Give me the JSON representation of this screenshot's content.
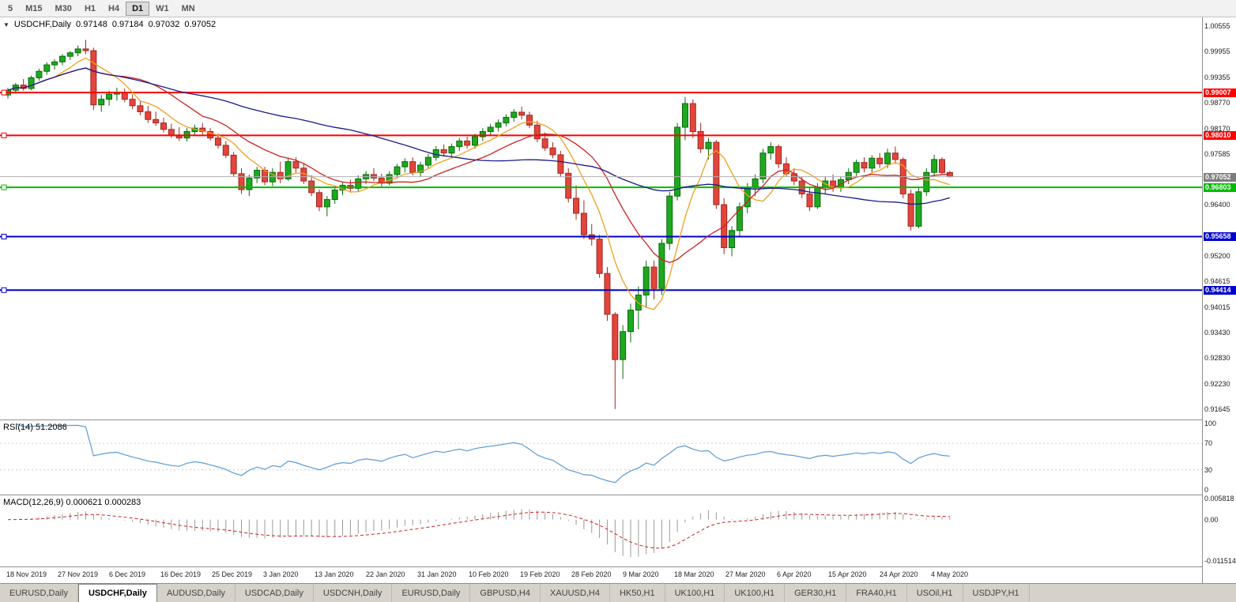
{
  "toolbar": {
    "timeframes": [
      "5",
      "M15",
      "M30",
      "H1",
      "H4",
      "D1",
      "W1",
      "MN"
    ],
    "active": "D1"
  },
  "chart_header": {
    "symbol_label": "USDCHF,Daily",
    "open": "0.97148",
    "high": "0.97184",
    "low": "0.97032",
    "close": "0.97052"
  },
  "colors": {
    "bull": "#1fa81f",
    "bull_border": "#0a6a0a",
    "bear": "#e2453c",
    "bear_border": "#a02820",
    "rsi": "#5b9bd5",
    "macd_hist": "#9a9a9a",
    "macd_signal": "#cc2222",
    "current_price_line": "#b0b0b0",
    "current_price_box": "#7d7d7d",
    "level_red": "#ff0000",
    "level_green": "#00bb00",
    "level_blue": "#0000cc"
  },
  "chart_data": {
    "type": "candlestick",
    "symbol": "USDCHF",
    "timeframe": "Daily",
    "ylim": [
      0.9148,
      1.0068
    ],
    "price_axis_ticks": [
      "1.00555",
      "0.99955",
      "0.99355",
      "0.98770",
      "0.98170",
      "0.97585",
      "0.96400",
      "0.95200",
      "0.94615",
      "0.94015",
      "0.93430",
      "0.92830",
      "0.92230",
      "0.91645"
    ],
    "x_labels": [
      "18 Nov 2019",
      "27 Nov 2019",
      "6 Dec 2019",
      "16 Dec 2019",
      "25 Dec 2019",
      "3 Jan 2020",
      "13 Jan 2020",
      "22 Jan 2020",
      "31 Jan 2020",
      "10 Feb 2020",
      "19 Feb 2020",
      "28 Feb 2020",
      "9 Mar 2020",
      "18 Mar 2020",
      "27 Mar 2020",
      "6 Apr 2020",
      "15 Apr 2020",
      "24 Apr 2020",
      "4 May 2020"
    ],
    "current_price": {
      "value": 0.97052,
      "label": "0.97052"
    },
    "hlines": [
      {
        "value": 0.99007,
        "label": "0.99007",
        "color": "#ff0000"
      },
      {
        "value": 0.9801,
        "label": "0.98010",
        "color": "#ff0000"
      },
      {
        "value": 0.96803,
        "label": "0.96803",
        "color": "#00bb00"
      },
      {
        "value": 0.95658,
        "label": "0.95658",
        "color": "#0000cc"
      },
      {
        "value": 0.94414,
        "label": "0.94414",
        "color": "#0000cc"
      }
    ],
    "moving_averages": [
      {
        "period": 7,
        "color": "#efa020"
      },
      {
        "period": 15,
        "color": "#cc2222"
      },
      {
        "period": 45,
        "color": "#1a1a8c"
      }
    ],
    "indicators": {
      "rsi": {
        "label": "RSI(14) 51.2086",
        "period": 14,
        "ticks": [
          "100",
          "70",
          "30",
          "0"
        ],
        "levels": [
          70,
          30
        ]
      },
      "macd": {
        "label": "MACD(12,26,9) 0.000621 0.000283",
        "fast": 12,
        "slow": 26,
        "signal": 9,
        "ticks": [
          "0.005818",
          "0.00",
          "-0.011514"
        ],
        "range": [
          -0.0118,
          0.0059
        ]
      }
    },
    "candles": [
      [
        0.9895,
        0.9912,
        0.9887,
        0.9906
      ],
      [
        0.9906,
        0.9923,
        0.9898,
        0.9918
      ],
      [
        0.9918,
        0.9932,
        0.9905,
        0.991
      ],
      [
        0.991,
        0.994,
        0.9906,
        0.9935
      ],
      [
        0.9935,
        0.9956,
        0.9928,
        0.995
      ],
      [
        0.995,
        0.9971,
        0.9942,
        0.9965
      ],
      [
        0.9965,
        0.9978,
        0.9954,
        0.9972
      ],
      [
        0.9972,
        0.999,
        0.9964,
        0.9985
      ],
      [
        0.9985,
        0.9997,
        0.9976,
        0.9993
      ],
      [
        0.9993,
        1.001,
        0.9985,
        1.0002
      ],
      [
        1.0002,
        1.0023,
        0.999,
        0.9998
      ],
      [
        0.9998,
        1.0005,
        0.986,
        0.9872
      ],
      [
        0.9872,
        0.9895,
        0.9856,
        0.9885
      ],
      [
        0.9885,
        0.9905,
        0.987,
        0.9897
      ],
      [
        0.9897,
        0.9912,
        0.9882,
        0.9901
      ],
      [
        0.9901,
        0.991,
        0.9878,
        0.9885
      ],
      [
        0.9885,
        0.9896,
        0.9862,
        0.987
      ],
      [
        0.987,
        0.9882,
        0.9848,
        0.9856
      ],
      [
        0.9856,
        0.987,
        0.983,
        0.9838
      ],
      [
        0.9838,
        0.9856,
        0.9823,
        0.983
      ],
      [
        0.983,
        0.9842,
        0.9808,
        0.9815
      ],
      [
        0.9815,
        0.9828,
        0.9795,
        0.9802
      ],
      [
        0.9802,
        0.982,
        0.9788,
        0.9795
      ],
      [
        0.9795,
        0.9818,
        0.9787,
        0.981
      ],
      [
        0.981,
        0.9826,
        0.9799,
        0.9818
      ],
      [
        0.9818,
        0.983,
        0.9802,
        0.981
      ],
      [
        0.981,
        0.9818,
        0.9789,
        0.9795
      ],
      [
        0.9795,
        0.9805,
        0.977,
        0.9778
      ],
      [
        0.9778,
        0.9788,
        0.9748,
        0.9755
      ],
      [
        0.9755,
        0.9762,
        0.9705,
        0.9712
      ],
      [
        0.9712,
        0.9725,
        0.9665,
        0.9675
      ],
      [
        0.9675,
        0.971,
        0.966,
        0.9702
      ],
      [
        0.9702,
        0.9728,
        0.969,
        0.972
      ],
      [
        0.972,
        0.9728,
        0.9685,
        0.9693
      ],
      [
        0.9693,
        0.9725,
        0.9683,
        0.9715
      ],
      [
        0.9715,
        0.974,
        0.969,
        0.97
      ],
      [
        0.97,
        0.9748,
        0.9695,
        0.974
      ],
      [
        0.974,
        0.975,
        0.9715,
        0.9725
      ],
      [
        0.9725,
        0.9736,
        0.9688,
        0.9695
      ],
      [
        0.9695,
        0.9708,
        0.966,
        0.9668
      ],
      [
        0.9668,
        0.9675,
        0.9625,
        0.9635
      ],
      [
        0.9635,
        0.966,
        0.9613,
        0.9652
      ],
      [
        0.9652,
        0.968,
        0.9642,
        0.9674
      ],
      [
        0.9674,
        0.9692,
        0.9662,
        0.9685
      ],
      [
        0.9685,
        0.9698,
        0.9668,
        0.9678
      ],
      [
        0.9678,
        0.9708,
        0.967,
        0.97
      ],
      [
        0.97,
        0.9718,
        0.9688,
        0.971
      ],
      [
        0.971,
        0.9725,
        0.9695,
        0.9702
      ],
      [
        0.9702,
        0.9712,
        0.9682,
        0.969
      ],
      [
        0.969,
        0.9718,
        0.9685,
        0.971
      ],
      [
        0.971,
        0.9735,
        0.9702,
        0.9728
      ],
      [
        0.9728,
        0.9748,
        0.9715,
        0.974
      ],
      [
        0.974,
        0.975,
        0.9708,
        0.9715
      ],
      [
        0.9715,
        0.974,
        0.9705,
        0.9732
      ],
      [
        0.9732,
        0.9758,
        0.9725,
        0.975
      ],
      [
        0.975,
        0.9776,
        0.9742,
        0.9768
      ],
      [
        0.9768,
        0.978,
        0.9752,
        0.976
      ],
      [
        0.976,
        0.9782,
        0.975,
        0.9775
      ],
      [
        0.9775,
        0.9795,
        0.9765,
        0.9788
      ],
      [
        0.9788,
        0.9798,
        0.977,
        0.9778
      ],
      [
        0.9778,
        0.9805,
        0.977,
        0.9798
      ],
      [
        0.9798,
        0.9818,
        0.9788,
        0.981
      ],
      [
        0.981,
        0.9828,
        0.98,
        0.982
      ],
      [
        0.982,
        0.9838,
        0.981,
        0.983
      ],
      [
        0.983,
        0.985,
        0.9822,
        0.9843
      ],
      [
        0.9843,
        0.9862,
        0.9833,
        0.9855
      ],
      [
        0.9855,
        0.9868,
        0.9838,
        0.9848
      ],
      [
        0.9848,
        0.9856,
        0.9818,
        0.9825
      ],
      [
        0.9825,
        0.9835,
        0.9785,
        0.9793
      ],
      [
        0.9793,
        0.9808,
        0.9765,
        0.9772
      ],
      [
        0.9772,
        0.9785,
        0.9748,
        0.9756
      ],
      [
        0.9756,
        0.9765,
        0.9705,
        0.9713
      ],
      [
        0.9713,
        0.9725,
        0.9645,
        0.9655
      ],
      [
        0.9655,
        0.9685,
        0.9605,
        0.962
      ],
      [
        0.962,
        0.965,
        0.956,
        0.957
      ],
      [
        0.957,
        0.9595,
        0.9545,
        0.956
      ],
      [
        0.956,
        0.957,
        0.947,
        0.948
      ],
      [
        0.948,
        0.9495,
        0.937,
        0.9385
      ],
      [
        0.9385,
        0.939,
        0.9165,
        0.928
      ],
      [
        0.928,
        0.936,
        0.9235,
        0.9345
      ],
      [
        0.9345,
        0.941,
        0.932,
        0.9395
      ],
      [
        0.9395,
        0.945,
        0.935,
        0.943
      ],
      [
        0.943,
        0.951,
        0.94,
        0.9495
      ],
      [
        0.9495,
        0.951,
        0.942,
        0.9445
      ],
      [
        0.9445,
        0.956,
        0.943,
        0.955
      ],
      [
        0.955,
        0.967,
        0.9535,
        0.966
      ],
      [
        0.966,
        0.983,
        0.965,
        0.982
      ],
      [
        0.982,
        0.989,
        0.979,
        0.9875
      ],
      [
        0.9875,
        0.9885,
        0.9795,
        0.981
      ],
      [
        0.981,
        0.983,
        0.976,
        0.977
      ],
      [
        0.977,
        0.9795,
        0.9745,
        0.9785
      ],
      [
        0.9785,
        0.979,
        0.963,
        0.964
      ],
      [
        0.964,
        0.9655,
        0.9525,
        0.954
      ],
      [
        0.954,
        0.959,
        0.952,
        0.958
      ],
      [
        0.958,
        0.9645,
        0.9565,
        0.9635
      ],
      [
        0.9635,
        0.969,
        0.962,
        0.968
      ],
      [
        0.968,
        0.971,
        0.966,
        0.97
      ],
      [
        0.97,
        0.977,
        0.969,
        0.976
      ],
      [
        0.976,
        0.9785,
        0.9745,
        0.9775
      ],
      [
        0.9775,
        0.978,
        0.9725,
        0.9735
      ],
      [
        0.9735,
        0.975,
        0.9705,
        0.9712
      ],
      [
        0.9712,
        0.9725,
        0.9685,
        0.9695
      ],
      [
        0.9695,
        0.9705,
        0.9655,
        0.9665
      ],
      [
        0.9665,
        0.968,
        0.9625,
        0.9635
      ],
      [
        0.9635,
        0.969,
        0.963,
        0.968
      ],
      [
        0.968,
        0.9705,
        0.9665,
        0.9695
      ],
      [
        0.9695,
        0.971,
        0.967,
        0.968
      ],
      [
        0.968,
        0.9705,
        0.967,
        0.9698
      ],
      [
        0.9698,
        0.9725,
        0.9688,
        0.9715
      ],
      [
        0.9715,
        0.9745,
        0.9705,
        0.9738
      ],
      [
        0.9738,
        0.975,
        0.9715,
        0.9725
      ],
      [
        0.9725,
        0.9755,
        0.9715,
        0.9748
      ],
      [
        0.9748,
        0.976,
        0.9725,
        0.9735
      ],
      [
        0.9735,
        0.977,
        0.9725,
        0.976
      ],
      [
        0.976,
        0.9775,
        0.9735,
        0.9745
      ],
      [
        0.9745,
        0.975,
        0.9655,
        0.9665
      ],
      [
        0.9665,
        0.9675,
        0.958,
        0.959
      ],
      [
        0.959,
        0.968,
        0.9585,
        0.967
      ],
      [
        0.967,
        0.9725,
        0.966,
        0.9715
      ],
      [
        0.9715,
        0.9756,
        0.9705,
        0.9745
      ],
      [
        0.9745,
        0.975,
        0.971,
        0.97148
      ],
      [
        0.97148,
        0.97184,
        0.97032,
        0.97052
      ]
    ]
  },
  "tabbar": {
    "tabs": [
      "EURUSD,Daily",
      "USDCHF,Daily",
      "AUDUSD,Daily",
      "USDCAD,Daily",
      "USDCNH,Daily",
      "EURUSD,Daily",
      "GBPUSD,H4",
      "XAUUSD,H4",
      "HK50,H1",
      "UK100,H1",
      "UK100,H1",
      "GER30,H1",
      "FRA40,H1",
      "USOil,H1",
      "USDJPY,H1"
    ],
    "active_index": 1
  }
}
